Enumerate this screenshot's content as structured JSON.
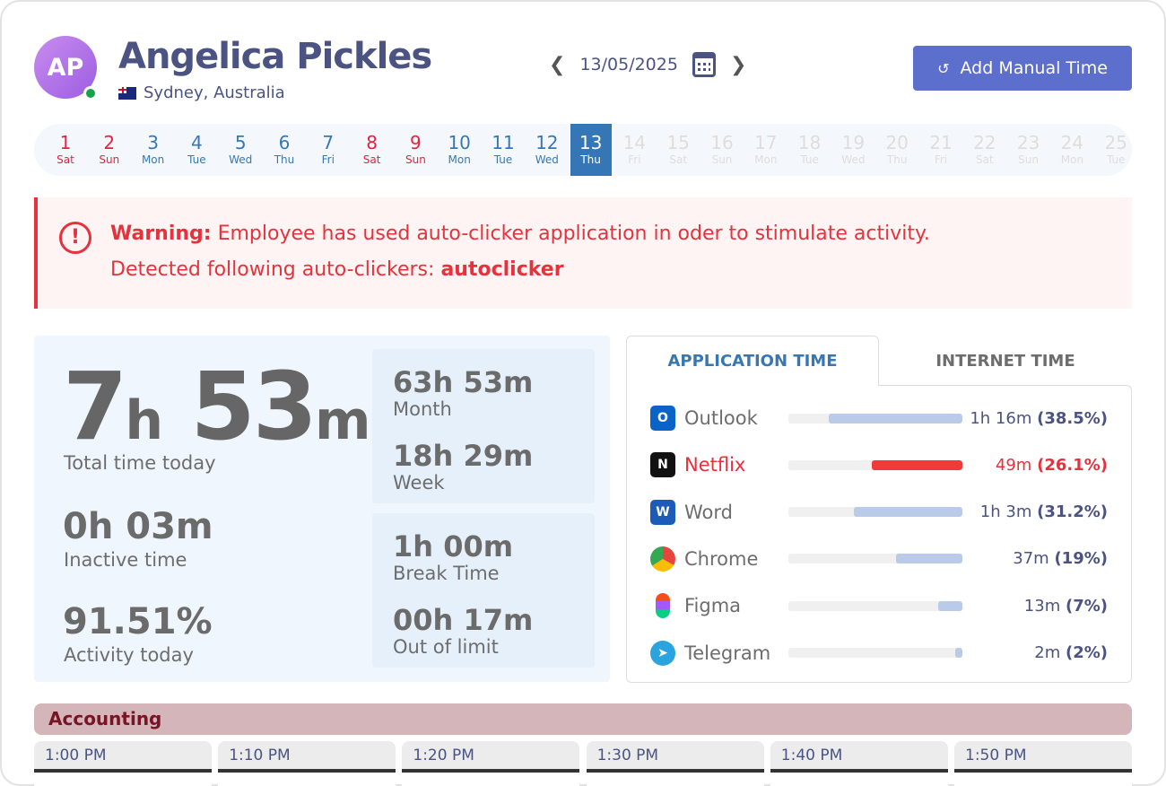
{
  "user": {
    "initials": "AP",
    "name": "Angelica Pickles",
    "location": "Sydney, Australia",
    "status": "online"
  },
  "date_nav": {
    "date": "13/05/2025",
    "prev_icon": "chevron-left",
    "next_icon": "chevron-right",
    "calendar_icon": "calendar"
  },
  "add_button": {
    "label": "Add Manual Time",
    "icon": "clock-history"
  },
  "days": [
    {
      "n": "1",
      "w": "Sat",
      "t": "wk"
    },
    {
      "n": "2",
      "w": "Sun",
      "t": "wk"
    },
    {
      "n": "3",
      "w": "Mon",
      "t": "wd"
    },
    {
      "n": "4",
      "w": "Tue",
      "t": "wd"
    },
    {
      "n": "5",
      "w": "Wed",
      "t": "wd"
    },
    {
      "n": "6",
      "w": "Thu",
      "t": "wd"
    },
    {
      "n": "7",
      "w": "Fri",
      "t": "wd"
    },
    {
      "n": "8",
      "w": "Sat",
      "t": "wk"
    },
    {
      "n": "9",
      "w": "Sun",
      "t": "wk"
    },
    {
      "n": "10",
      "w": "Mon",
      "t": "wd"
    },
    {
      "n": "11",
      "w": "Tue",
      "t": "wd"
    },
    {
      "n": "12",
      "w": "Wed",
      "t": "wd"
    },
    {
      "n": "13",
      "w": "Thu",
      "t": "sel"
    },
    {
      "n": "14",
      "w": "Fri",
      "t": "fut"
    },
    {
      "n": "15",
      "w": "Sat",
      "t": "fut"
    },
    {
      "n": "16",
      "w": "Sun",
      "t": "fut"
    },
    {
      "n": "17",
      "w": "Mon",
      "t": "fut"
    },
    {
      "n": "18",
      "w": "Tue",
      "t": "fut"
    },
    {
      "n": "19",
      "w": "Wed",
      "t": "fut"
    },
    {
      "n": "20",
      "w": "Thu",
      "t": "fut"
    },
    {
      "n": "21",
      "w": "Fri",
      "t": "fut"
    },
    {
      "n": "22",
      "w": "Sat",
      "t": "fut"
    },
    {
      "n": "23",
      "w": "Sun",
      "t": "fut"
    },
    {
      "n": "24",
      "w": "Mon",
      "t": "fut"
    },
    {
      "n": "25",
      "w": "Tue",
      "t": "fut"
    }
  ],
  "warning": {
    "label": "Warning:",
    "message": " Employee has used auto-clicker application in oder to stimulate activity.",
    "detected_label": "Detected following auto-clickers: ",
    "detected_value": "autoclicker"
  },
  "stats": {
    "total_h": "7",
    "total_m": "53",
    "h_unit": "h",
    "m_unit": "m",
    "total_label": "Total time today",
    "inactive": "0h 03m",
    "inactive_label": "Inactive time",
    "activity": "91.51%",
    "activity_label": "Activity today",
    "month": "63h 53m",
    "month_label": "Month",
    "week": "18h 29m",
    "week_label": "Week",
    "break": "1h 00m",
    "break_label": "Break Time",
    "out": "00h 17m",
    "out_label": "Out of limit"
  },
  "tabs": [
    {
      "label": "APPLICATION TIME",
      "active": true
    },
    {
      "label": "INTERNET TIME",
      "active": false
    }
  ],
  "apps": [
    {
      "name": "Outlook",
      "time": "1h 16m",
      "pct": "(38.5%)",
      "value": 38.5,
      "color": "#0a64c8",
      "bar": "#b9cbe8",
      "alert": false
    },
    {
      "name": "Netflix",
      "time": "49m",
      "pct": "(26.1%)",
      "value": 26.1,
      "color": "#111111",
      "bar": "#f33a3a",
      "alert": true
    },
    {
      "name": "Word",
      "time": "1h 3m",
      "pct": "(31.2%)",
      "value": 31.2,
      "color": "#1d5bb8",
      "bar": "#b9cbe8",
      "alert": false
    },
    {
      "name": "Chrome",
      "time": "37m",
      "pct": "(19%)",
      "value": 19,
      "color": "#e8453c",
      "bar": "#b9cbe8",
      "alert": false
    },
    {
      "name": "Figma",
      "time": "13m",
      "pct": "(7%)",
      "value": 7,
      "color": "#f24e1e",
      "bar": "#b9cbe8",
      "alert": false
    },
    {
      "name": "Telegram",
      "time": "2m",
      "pct": "(2%)",
      "value": 2,
      "color": "#2aa3df",
      "bar": "#b9cbe8",
      "alert": false
    }
  ],
  "department": "Accounting",
  "screenshots": [
    "1:00 PM",
    "1:10 PM",
    "1:20 PM",
    "1:30 PM",
    "1:40 PM",
    "1:50 PM"
  ],
  "colors": {
    "accent": "#5c6fcd",
    "warning": "#e5323c",
    "selected_day": "#3577b6"
  }
}
